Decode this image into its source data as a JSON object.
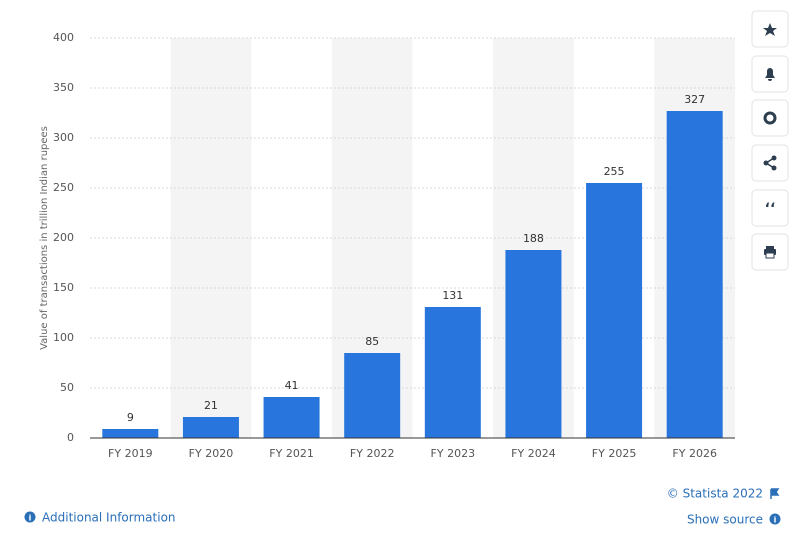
{
  "chart_data": {
    "type": "bar",
    "y_label": "Value of transactions in trillion Indian rupees",
    "categories": [
      "FY 2019",
      "FY 2020",
      "FY 2021",
      "FY 2022",
      "FY 2023",
      "FY 2024",
      "FY 2025",
      "FY 2026"
    ],
    "values": [
      9,
      21,
      41,
      85,
      131,
      188,
      255,
      327
    ],
    "color": "#2876dd",
    "ylim": [
      0,
      400
    ],
    "yticks": [
      0,
      50,
      100,
      150,
      200,
      250,
      300,
      350,
      400
    ],
    "grid": true
  },
  "footer": {
    "copyright": "© Statista 2022",
    "additional_info": "Additional Information",
    "show_source": "Show source"
  }
}
